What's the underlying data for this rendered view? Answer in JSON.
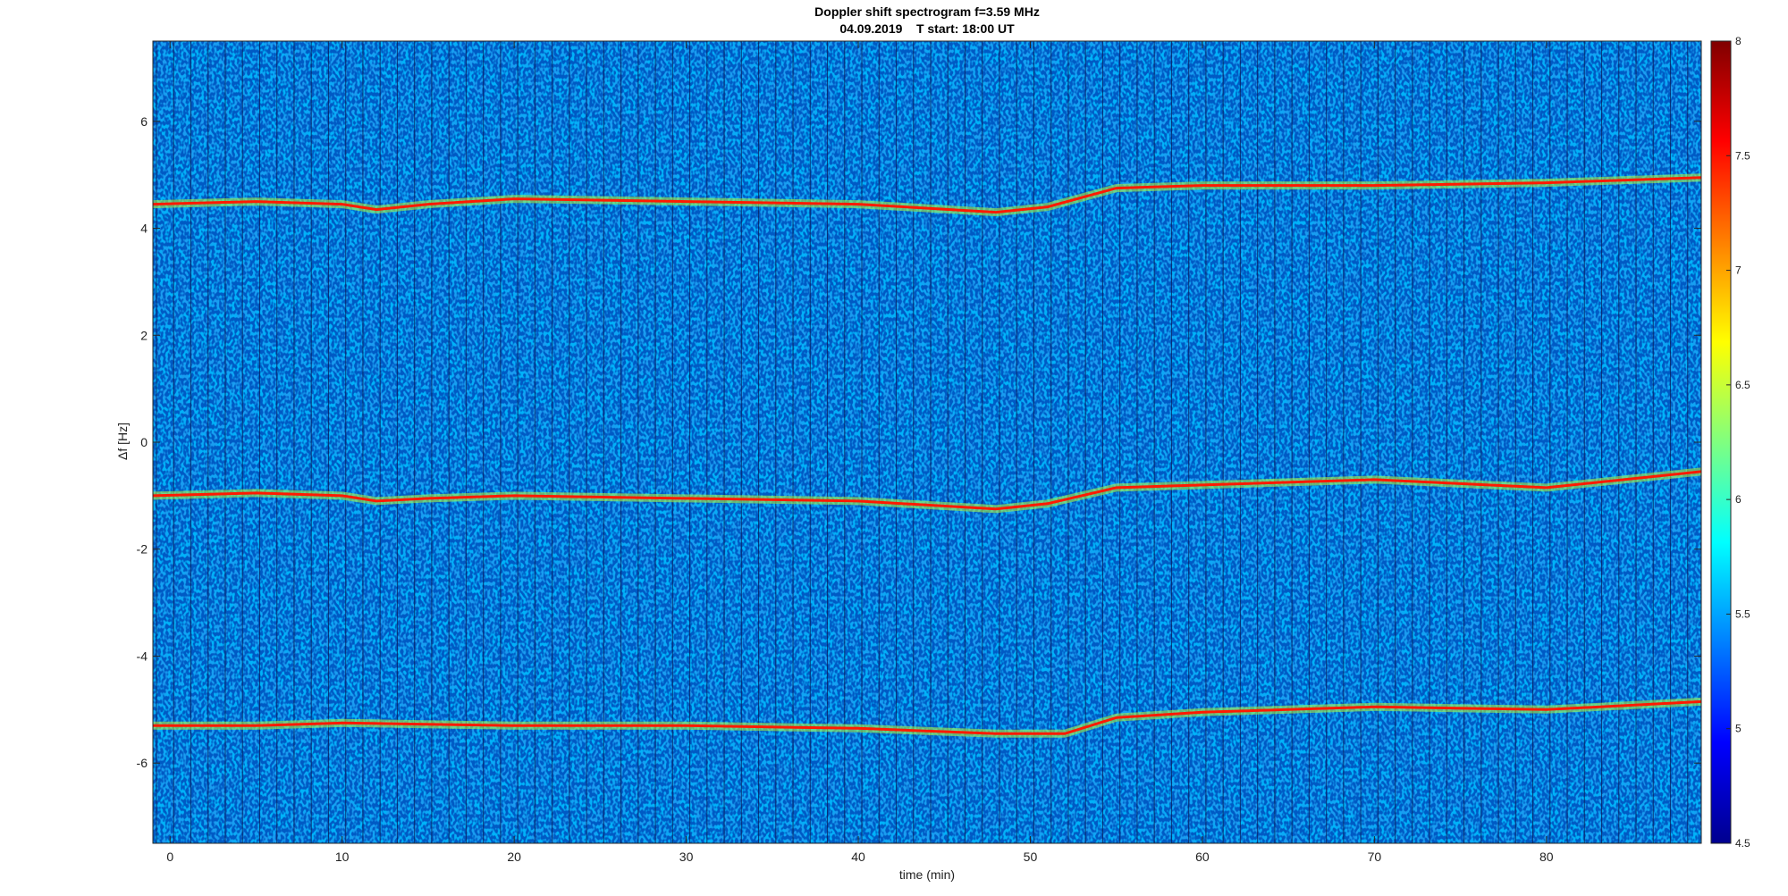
{
  "chart_data": {
    "type": "heatmap",
    "title_line1": "Doppler shift spectrogram f=3.59 MHz",
    "title_line2": "04.09.2019    T start: 18:00 UT",
    "xlabel": "time (min)",
    "ylabel": "Δf [Hz]",
    "xlim": [
      -1,
      89
    ],
    "ylim": [
      -7.5,
      7.5
    ],
    "x_ticks": [
      0,
      10,
      20,
      30,
      40,
      50,
      60,
      70,
      80
    ],
    "y_ticks": [
      -6,
      -4,
      -2,
      0,
      2,
      4,
      6
    ],
    "colorbar": {
      "colormap": "jet",
      "range": [
        4.5,
        8
      ],
      "ticks": [
        4.5,
        5,
        5.5,
        6,
        6.5,
        7,
        7.5,
        8
      ]
    },
    "traces": [
      {
        "x": [
          -1,
          5,
          10,
          12,
          15,
          20,
          30,
          40,
          48,
          51,
          55,
          60,
          70,
          80,
          89
        ],
        "y": [
          4.45,
          4.5,
          4.45,
          4.35,
          4.45,
          4.55,
          4.5,
          4.45,
          4.3,
          4.4,
          4.75,
          4.8,
          4.8,
          4.85,
          4.95
        ]
      },
      {
        "x": [
          -1,
          5,
          10,
          12,
          15,
          20,
          30,
          40,
          48,
          51,
          55,
          60,
          70,
          80,
          89
        ],
        "y": [
          -1.0,
          -0.95,
          -1.0,
          -1.1,
          -1.05,
          -1.0,
          -1.05,
          -1.1,
          -1.25,
          -1.15,
          -0.85,
          -0.8,
          -0.7,
          -0.85,
          -0.55
        ]
      },
      {
        "x": [
          -1,
          5,
          10,
          20,
          30,
          40,
          48,
          52,
          55,
          60,
          70,
          80,
          89
        ],
        "y": [
          -5.3,
          -5.3,
          -5.25,
          -5.3,
          -5.3,
          -5.35,
          -5.45,
          -5.45,
          -5.15,
          -5.05,
          -4.95,
          -5.0,
          -4.85
        ]
      }
    ]
  }
}
